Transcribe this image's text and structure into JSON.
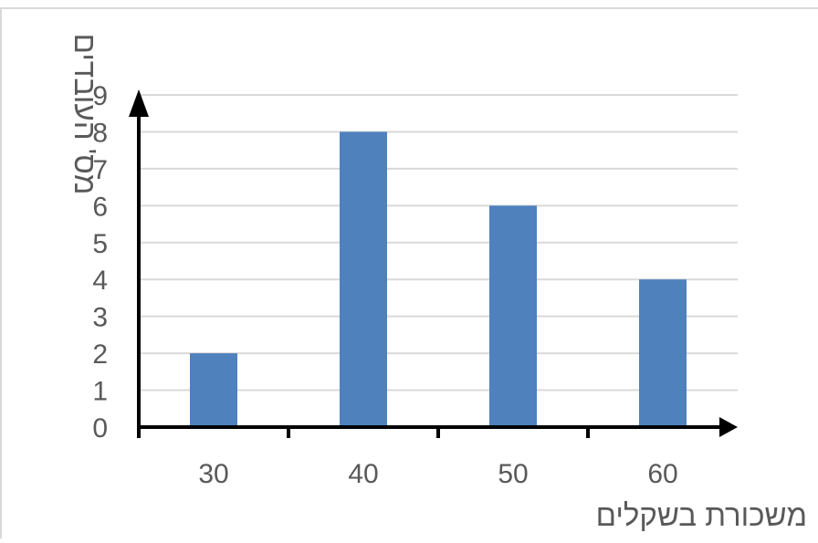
{
  "chart_data": {
    "type": "bar",
    "categories": [
      "30",
      "40",
      "50",
      "60"
    ],
    "values": [
      2,
      8,
      6,
      4
    ],
    "xlabel": "משכורת בשקלים",
    "ylabel": "מס' העובדים",
    "ylim": [
      0,
      9
    ],
    "yticks": [
      "0",
      "1",
      "2",
      "3",
      "4",
      "5",
      "6",
      "7",
      "8",
      "9"
    ],
    "grid": true,
    "legend": "none",
    "bar_color": "#4f81bd",
    "grid_color": "#d9d9d9",
    "axis_color": "#000000",
    "text_color": "#595959"
  }
}
